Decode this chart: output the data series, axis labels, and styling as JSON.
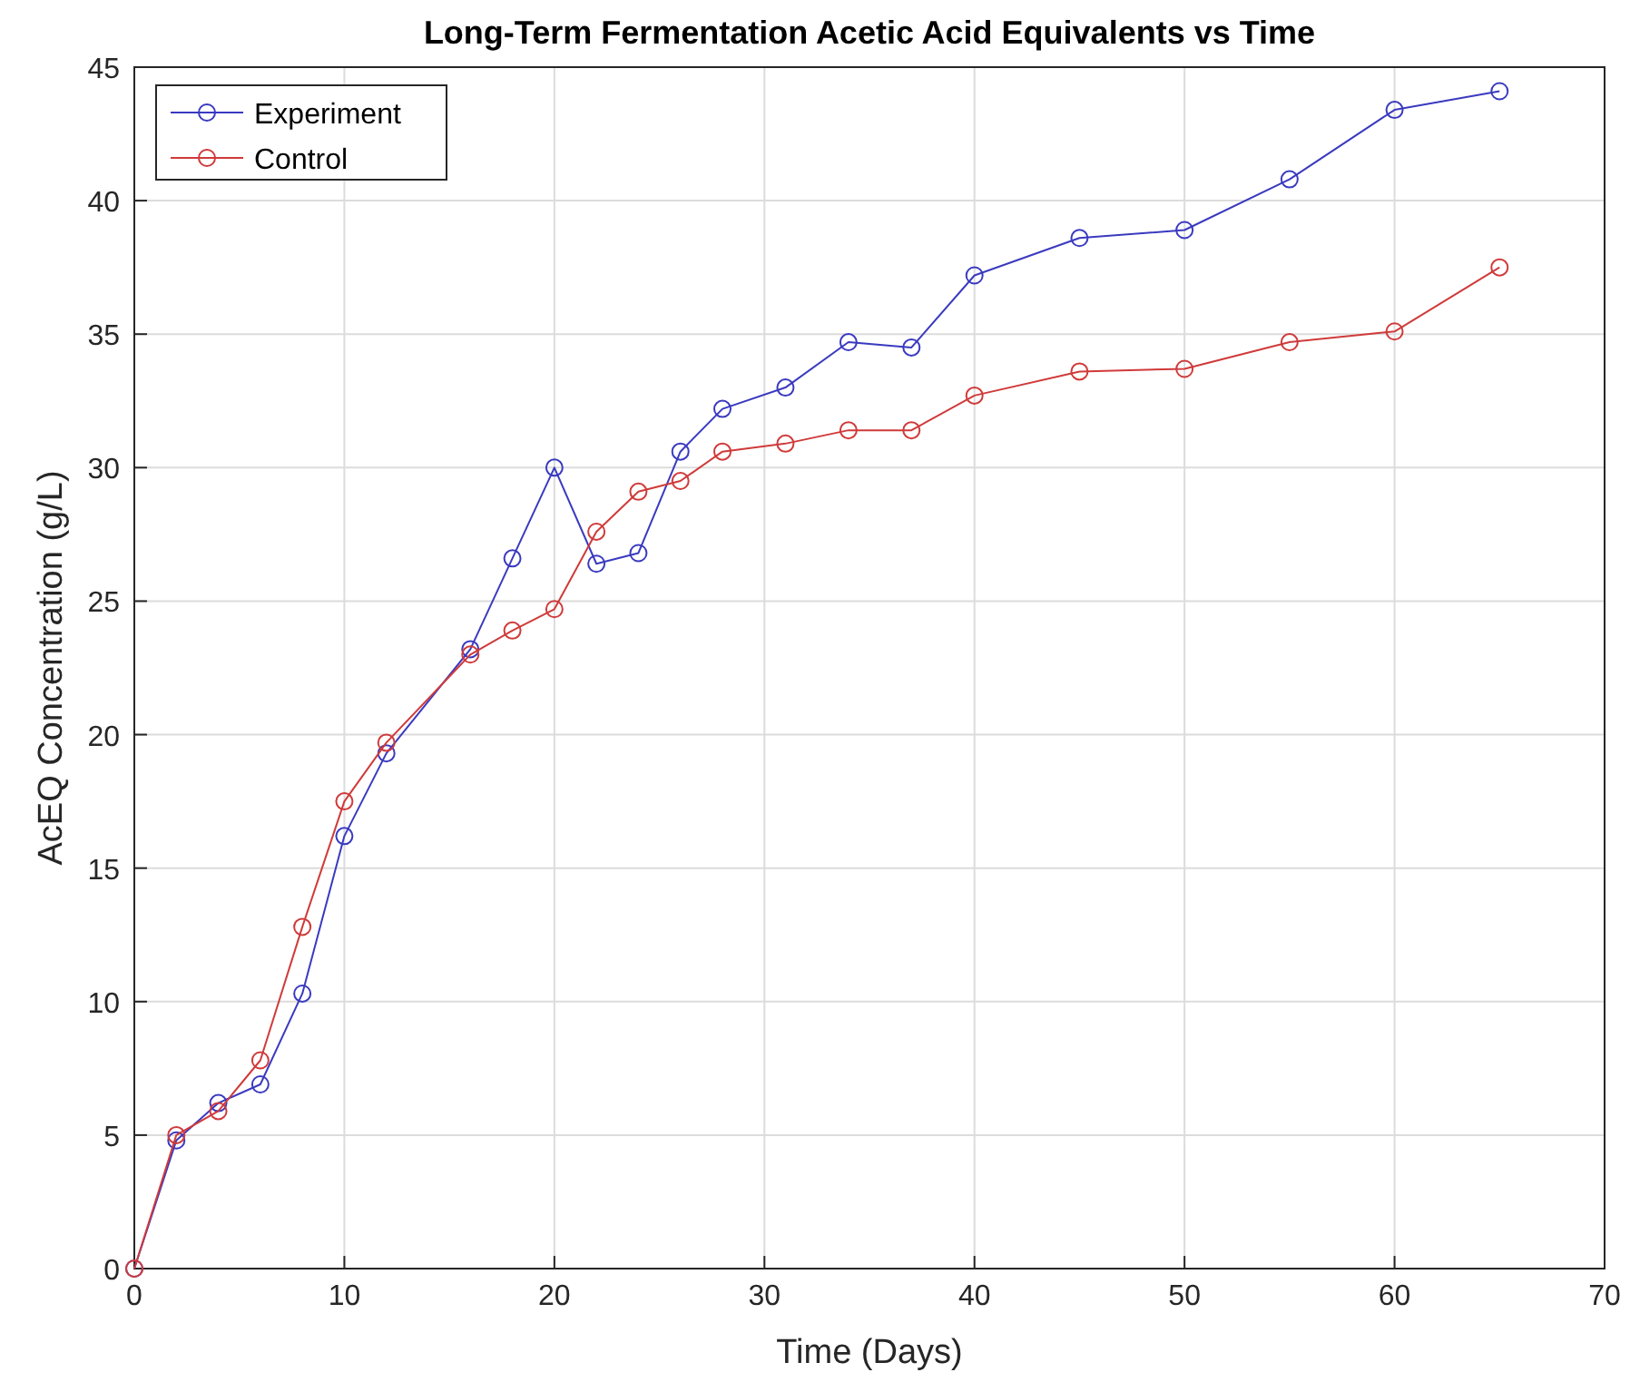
{
  "chart_data": {
    "type": "line",
    "title": "Long-Term Fermentation Acetic Acid Equivalents vs Time",
    "xlabel": "Time (Days)",
    "ylabel": "AcEQ Concentration (g/L)",
    "x": [
      0,
      2,
      4,
      6,
      8,
      10,
      12,
      16,
      18,
      20,
      22,
      24,
      26,
      28,
      31,
      34,
      37,
      40,
      45,
      50,
      55,
      60,
      65
    ],
    "series": [
      {
        "name": "Experiment",
        "color": "#3a3ac0",
        "values": [
          0,
          4.8,
          6.2,
          6.9,
          10.3,
          16.2,
          19.3,
          23.2,
          26.6,
          30.0,
          26.4,
          26.8,
          30.6,
          32.2,
          33.0,
          34.7,
          34.5,
          37.2,
          38.6,
          38.9,
          40.8,
          43.4,
          44.1
        ]
      },
      {
        "name": "Control",
        "color": "#d03a3a",
        "values": [
          0,
          5.0,
          5.9,
          7.8,
          12.8,
          17.5,
          19.7,
          23.0,
          23.9,
          24.7,
          27.6,
          29.1,
          29.5,
          30.6,
          30.9,
          31.4,
          31.4,
          32.7,
          33.6,
          33.7,
          34.7,
          35.1,
          37.5
        ]
      }
    ],
    "xlim": [
      0,
      70
    ],
    "xticks": [
      0,
      10,
      20,
      30,
      40,
      50,
      60,
      70
    ],
    "ylim": [
      0,
      45
    ],
    "yticks": [
      0,
      5,
      10,
      15,
      20,
      25,
      30,
      35,
      40,
      45
    ],
    "grid": true,
    "legend": "top left",
    "marker": "circle",
    "line_style": "solid"
  }
}
